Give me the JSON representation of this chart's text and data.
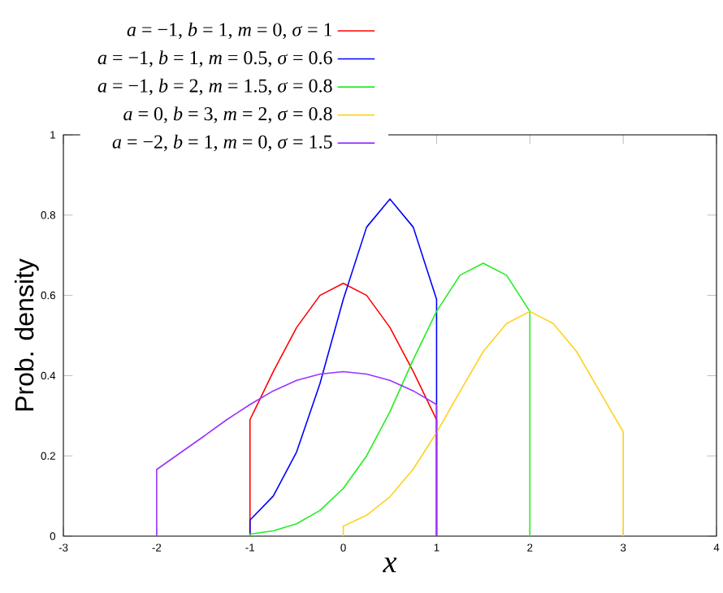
{
  "chart_data": {
    "type": "line",
    "xlabel": "x",
    "ylabel": "Prob. density",
    "xlim": [
      -3,
      4
    ],
    "ylim": [
      0,
      1
    ],
    "xticks": [
      -3,
      -2,
      -1,
      0,
      1,
      2,
      3,
      4
    ],
    "yticks": [
      0,
      0.2,
      0.4,
      0.6,
      0.8,
      1
    ],
    "legend": "top left",
    "marker": "none",
    "series": [
      {
        "name": "*a* = −1, *b* = 1, *m* = 0, *σ* = 1",
        "color": "#ff0000",
        "x": [
          -1,
          -1,
          -0.75,
          -0.5,
          -0.25,
          0,
          0.25,
          0.5,
          0.75,
          1,
          1
        ],
        "values": [
          0,
          0.29,
          0.41,
          0.52,
          0.6,
          0.63,
          0.6,
          0.52,
          0.41,
          0.29,
          0
        ]
      },
      {
        "name": "*a* = −1, *b* = 1, *m* = 0.5, *σ* = 0.6",
        "color": "#0000ff",
        "x": [
          -1,
          -1,
          -0.75,
          -0.5,
          -0.25,
          0,
          0.25,
          0.5,
          0.75,
          1,
          1
        ],
        "values": [
          0,
          0.04,
          0.1,
          0.21,
          0.38,
          0.59,
          0.77,
          0.84,
          0.77,
          0.59,
          0
        ]
      },
      {
        "name": "*a* = −1, *b* = 2, *m* = 1.5, *σ* = 0.8",
        "color": "#22ee22",
        "x": [
          -1,
          -1,
          -0.75,
          -0.5,
          -0.25,
          0,
          0.25,
          0.5,
          0.75,
          1,
          1.25,
          1.5,
          1.75,
          2,
          2
        ],
        "values": [
          0,
          0.005,
          0.013,
          0.031,
          0.064,
          0.119,
          0.2,
          0.31,
          0.44,
          0.56,
          0.65,
          0.68,
          0.65,
          0.56,
          0
        ]
      },
      {
        "name": "*a* = 0, *b* = 3, *m* = 2, *σ* = 0.8",
        "color": "#ffd21f",
        "x": [
          0,
          0,
          0.25,
          0.5,
          0.75,
          1,
          1.25,
          1.5,
          1.75,
          2,
          2.25,
          2.5,
          2.75,
          3,
          3
        ],
        "values": [
          0,
          0.025,
          0.052,
          0.098,
          0.167,
          0.258,
          0.36,
          0.46,
          0.53,
          0.56,
          0.53,
          0.46,
          0.36,
          0.26,
          0
        ]
      },
      {
        "name": "*a* = −2, *b* = 1, *m* = 0, *σ* = 1.5",
        "color": "#9933ff",
        "x": [
          -2,
          -2,
          -1.75,
          -1.5,
          -1.25,
          -1,
          -0.75,
          -0.5,
          -0.25,
          0,
          0.25,
          0.5,
          0.75,
          1,
          1
        ],
        "values": [
          0,
          0.166,
          0.207,
          0.248,
          0.29,
          0.328,
          0.362,
          0.388,
          0.404,
          0.41,
          0.404,
          0.388,
          0.362,
          0.328,
          0
        ]
      }
    ]
  }
}
